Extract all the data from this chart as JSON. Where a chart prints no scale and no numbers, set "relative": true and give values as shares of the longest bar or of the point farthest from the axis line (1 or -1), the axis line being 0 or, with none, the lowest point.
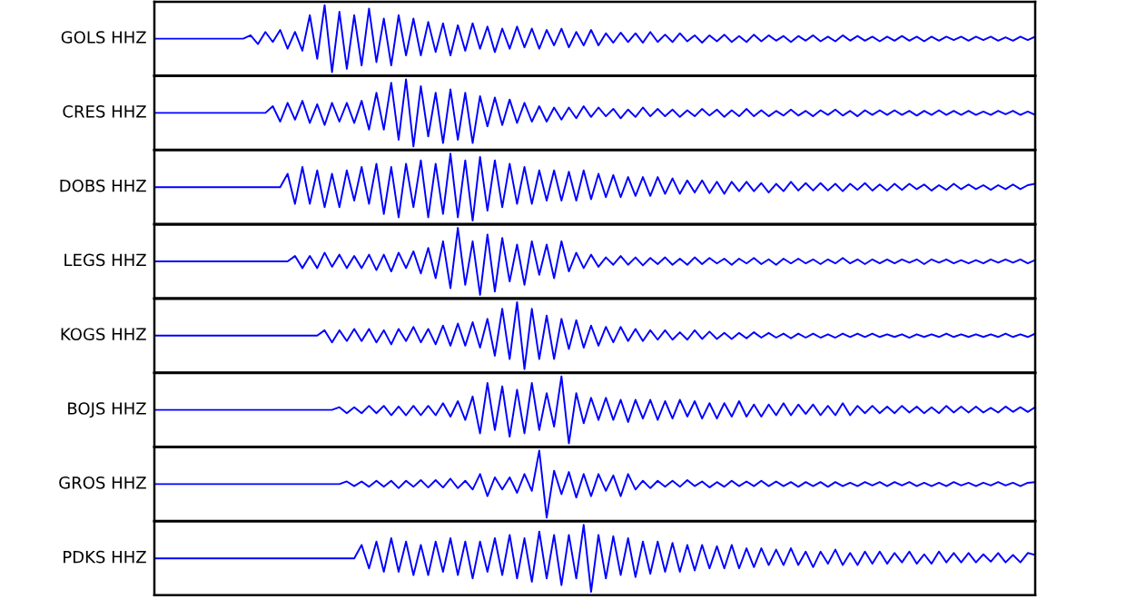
{
  "chart_data": [
    {
      "type": "line",
      "ylabel": "GOLS HHZ",
      "relative": true,
      "categories": [
        null,
        null,
        null,
        null,
        null,
        null,
        null,
        null,
        null,
        null,
        null,
        null,
        null,
        null,
        null,
        null,
        null,
        null,
        null,
        null,
        null,
        null,
        null,
        null,
        null,
        null,
        null,
        null,
        null,
        null,
        null,
        null,
        null,
        null,
        null,
        null,
        null,
        null,
        null,
        null,
        null,
        null,
        null,
        null,
        null,
        null,
        null,
        null,
        null,
        null,
        null,
        null,
        null,
        null,
        null,
        null,
        null,
        null,
        null,
        null,
        null,
        null,
        null,
        null,
        null,
        null,
        null,
        null,
        null,
        null,
        null,
        null,
        null,
        null,
        null,
        null,
        null,
        null,
        null,
        null,
        null,
        null,
        null,
        null,
        null,
        null,
        null,
        null,
        null,
        null,
        null,
        null,
        null,
        null,
        null,
        null,
        null,
        null,
        null,
        null,
        null,
        null,
        null,
        null,
        null,
        null,
        null,
        null,
        null,
        null,
        null,
        null,
        null,
        null,
        null,
        null,
        null,
        null,
        null,
        null
      ],
      "series": [
        {
          "color": "#0000ff",
          "values": [
            0.5,
            0.5,
            0.5,
            0.5,
            0.5,
            0.5,
            0.5,
            0.5,
            0.5,
            0.5,
            0.5,
            0.5,
            0.5,
            0.55,
            0.42,
            0.6,
            0.45,
            0.63,
            0.35,
            0.6,
            0.32,
            0.85,
            0.2,
            1,
            0,
            0.9,
            0.05,
            0.85,
            0.1,
            0.95,
            0.15,
            0.8,
            0.1,
            0.85,
            0.25,
            0.8,
            0.25,
            0.75,
            0.3,
            0.73,
            0.25,
            0.7,
            0.32,
            0.73,
            0.35,
            0.68,
            0.3,
            0.65,
            0.35,
            0.68,
            0.37,
            0.65,
            0.35,
            0.63,
            0.4,
            0.65,
            0.37,
            0.6,
            0.4,
            0.63,
            0.4,
            0.58,
            0.44,
            0.59,
            0.45,
            0.58,
            0.44,
            0.6,
            0.45,
            0.56,
            0.45,
            0.58,
            0.46,
            0.55,
            0.44,
            0.55,
            0.46,
            0.56,
            0.45,
            0.54,
            0.45,
            0.56,
            0.46,
            0.55,
            0.47,
            0.54,
            0.45,
            0.54,
            0.47,
            0.55,
            0.46,
            0.53,
            0.46,
            0.55,
            0.47,
            0.54,
            0.47,
            0.53,
            0.46,
            0.53,
            0.47,
            0.54,
            0.47,
            0.53,
            0.46,
            0.53,
            0.47,
            0.53,
            0.48,
            0.53,
            0.47,
            0.53,
            0.48,
            0.53,
            0.47,
            0.52,
            0.47,
            0.53,
            0.48,
            0.53
          ]
        }
      ]
    },
    {
      "type": "line",
      "ylabel": "CRES HHZ",
      "relative": true,
      "categories": [
        null,
        null,
        null,
        null,
        null,
        null,
        null,
        null,
        null,
        null,
        null,
        null,
        null,
        null,
        null,
        null,
        null,
        null,
        null,
        null,
        null,
        null,
        null,
        null,
        null,
        null,
        null,
        null,
        null,
        null,
        null,
        null,
        null,
        null,
        null,
        null,
        null,
        null,
        null,
        null,
        null,
        null,
        null,
        null,
        null,
        null,
        null,
        null,
        null,
        null,
        null,
        null,
        null,
        null,
        null,
        null,
        null,
        null,
        null,
        null,
        null,
        null,
        null,
        null,
        null,
        null,
        null,
        null,
        null,
        null,
        null,
        null,
        null,
        null,
        null,
        null,
        null,
        null,
        null,
        null,
        null,
        null,
        null,
        null,
        null,
        null,
        null,
        null,
        null,
        null,
        null,
        null,
        null,
        null,
        null,
        null,
        null,
        null,
        null,
        null,
        null,
        null,
        null,
        null,
        null,
        null,
        null,
        null,
        null,
        null,
        null,
        null,
        null,
        null,
        null,
        null,
        null,
        null,
        null,
        null
      ],
      "series": [
        {
          "color": "#0000ff",
          "values": [
            0.5,
            0.5,
            0.5,
            0.5,
            0.5,
            0.5,
            0.5,
            0.5,
            0.5,
            0.5,
            0.5,
            0.5,
            0.5,
            0.5,
            0.5,
            0.5,
            0.6,
            0.37,
            0.65,
            0.4,
            0.68,
            0.35,
            0.63,
            0.32,
            0.65,
            0.37,
            0.65,
            0.35,
            0.68,
            0.25,
            0.8,
            0.25,
            0.95,
            0.1,
            1,
            0,
            0.9,
            0.15,
            0.8,
            0.05,
            0.85,
            0.1,
            0.8,
            0.05,
            0.75,
            0.3,
            0.73,
            0.32,
            0.7,
            0.35,
            0.65,
            0.37,
            0.6,
            0.37,
            0.58,
            0.4,
            0.58,
            0.42,
            0.6,
            0.44,
            0.58,
            0.45,
            0.56,
            0.42,
            0.55,
            0.44,
            0.58,
            0.45,
            0.56,
            0.45,
            0.55,
            0.44,
            0.54,
            0.45,
            0.56,
            0.46,
            0.55,
            0.44,
            0.54,
            0.45,
            0.56,
            0.45,
            0.54,
            0.45,
            0.53,
            0.46,
            0.55,
            0.46,
            0.53,
            0.45,
            0.54,
            0.47,
            0.55,
            0.46,
            0.53,
            0.45,
            0.54,
            0.47,
            0.54,
            0.47,
            0.54,
            0.47,
            0.53,
            0.46,
            0.53,
            0.47,
            0.54,
            0.47,
            0.53,
            0.47,
            0.53,
            0.47,
            0.52,
            0.47,
            0.53,
            0.48,
            0.53,
            0.47,
            0.52,
            0.47
          ]
        }
      ]
    },
    {
      "type": "line",
      "ylabel": "DOBS HHZ",
      "relative": true,
      "categories": [
        null,
        null,
        null,
        null,
        null,
        null,
        null,
        null,
        null,
        null,
        null,
        null,
        null,
        null,
        null,
        null,
        null,
        null,
        null,
        null,
        null,
        null,
        null,
        null,
        null,
        null,
        null,
        null,
        null,
        null,
        null,
        null,
        null,
        null,
        null,
        null,
        null,
        null,
        null,
        null,
        null,
        null,
        null,
        null,
        null,
        null,
        null,
        null,
        null,
        null,
        null,
        null,
        null,
        null,
        null,
        null,
        null,
        null,
        null,
        null,
        null,
        null,
        null,
        null,
        null,
        null,
        null,
        null,
        null,
        null,
        null,
        null,
        null,
        null,
        null,
        null,
        null,
        null,
        null,
        null,
        null,
        null,
        null,
        null,
        null,
        null,
        null,
        null,
        null,
        null,
        null,
        null,
        null,
        null,
        null,
        null,
        null,
        null,
        null,
        null,
        null,
        null,
        null,
        null,
        null,
        null,
        null,
        null,
        null,
        null,
        null,
        null,
        null,
        null,
        null,
        null,
        null,
        null,
        null,
        null
      ],
      "series": [
        {
          "color": "#0000ff",
          "values": [
            0.5,
            0.5,
            0.5,
            0.5,
            0.5,
            0.5,
            0.5,
            0.5,
            0.5,
            0.5,
            0.5,
            0.5,
            0.5,
            0.5,
            0.5,
            0.5,
            0.5,
            0.5,
            0.7,
            0.25,
            0.8,
            0.25,
            0.75,
            0.2,
            0.7,
            0.2,
            0.75,
            0.3,
            0.8,
            0.25,
            0.85,
            0.1,
            0.8,
            0.05,
            0.85,
            0.2,
            0.9,
            0.05,
            0.85,
            0.1,
            1,
            0.05,
            0.9,
            0,
            0.95,
            0.15,
            0.9,
            0.2,
            0.85,
            0.25,
            0.8,
            0.25,
            0.75,
            0.3,
            0.75,
            0.3,
            0.73,
            0.3,
            0.75,
            0.32,
            0.7,
            0.35,
            0.68,
            0.35,
            0.65,
            0.37,
            0.65,
            0.37,
            0.65,
            0.4,
            0.63,
            0.4,
            0.6,
            0.42,
            0.6,
            0.41,
            0.58,
            0.4,
            0.58,
            0.44,
            0.58,
            0.44,
            0.56,
            0.42,
            0.55,
            0.44,
            0.58,
            0.45,
            0.56,
            0.45,
            0.56,
            0.45,
            0.55,
            0.44,
            0.55,
            0.46,
            0.56,
            0.45,
            0.54,
            0.45,
            0.55,
            0.46,
            0.55,
            0.47,
            0.54,
            0.45,
            0.53,
            0.46,
            0.55,
            0.47,
            0.54,
            0.47,
            0.53,
            0.46,
            0.53,
            0.47,
            0.54,
            0.47,
            0.53,
            0.55
          ]
        }
      ]
    },
    {
      "type": "line",
      "ylabel": "LEGS HHZ",
      "relative": true,
      "categories": [
        null,
        null,
        null,
        null,
        null,
        null,
        null,
        null,
        null,
        null,
        null,
        null,
        null,
        null,
        null,
        null,
        null,
        null,
        null,
        null,
        null,
        null,
        null,
        null,
        null,
        null,
        null,
        null,
        null,
        null,
        null,
        null,
        null,
        null,
        null,
        null,
        null,
        null,
        null,
        null,
        null,
        null,
        null,
        null,
        null,
        null,
        null,
        null,
        null,
        null,
        null,
        null,
        null,
        null,
        null,
        null,
        null,
        null,
        null,
        null,
        null,
        null,
        null,
        null,
        null,
        null,
        null,
        null,
        null,
        null,
        null,
        null,
        null,
        null,
        null,
        null,
        null,
        null,
        null,
        null,
        null,
        null,
        null,
        null,
        null,
        null,
        null,
        null,
        null,
        null,
        null,
        null,
        null,
        null,
        null,
        null,
        null,
        null,
        null,
        null,
        null,
        null,
        null,
        null,
        null,
        null,
        null,
        null,
        null,
        null,
        null,
        null,
        null,
        null,
        null,
        null,
        null,
        null,
        null,
        null
      ],
      "series": [
        {
          "color": "#0000ff",
          "values": [
            0.5,
            0.5,
            0.5,
            0.5,
            0.5,
            0.5,
            0.5,
            0.5,
            0.5,
            0.5,
            0.5,
            0.5,
            0.5,
            0.5,
            0.5,
            0.5,
            0.5,
            0.5,
            0.5,
            0.58,
            0.4,
            0.58,
            0.4,
            0.63,
            0.42,
            0.6,
            0.4,
            0.58,
            0.4,
            0.6,
            0.37,
            0.6,
            0.35,
            0.63,
            0.4,
            0.65,
            0.32,
            0.7,
            0.25,
            0.8,
            0.1,
            1,
            0.15,
            0.8,
            0,
            0.9,
            0.05,
            0.85,
            0.2,
            0.75,
            0.15,
            0.8,
            0.3,
            0.75,
            0.25,
            0.8,
            0.35,
            0.63,
            0.4,
            0.6,
            0.42,
            0.56,
            0.45,
            0.58,
            0.45,
            0.56,
            0.44,
            0.55,
            0.46,
            0.56,
            0.45,
            0.54,
            0.45,
            0.56,
            0.46,
            0.55,
            0.47,
            0.54,
            0.45,
            0.54,
            0.47,
            0.55,
            0.46,
            0.53,
            0.45,
            0.54,
            0.47,
            0.54,
            0.47,
            0.53,
            0.46,
            0.53,
            0.47,
            0.55,
            0.47,
            0.53,
            0.46,
            0.53,
            0.47,
            0.53,
            0.47,
            0.53,
            0.48,
            0.53,
            0.46,
            0.53,
            0.48,
            0.53,
            0.47,
            0.52,
            0.47,
            0.52,
            0.47,
            0.53,
            0.48,
            0.53,
            0.48,
            0.53,
            0.47,
            0.52
          ]
        }
      ]
    },
    {
      "type": "line",
      "ylabel": "KOGS HHZ",
      "relative": true,
      "categories": [
        null,
        null,
        null,
        null,
        null,
        null,
        null,
        null,
        null,
        null,
        null,
        null,
        null,
        null,
        null,
        null,
        null,
        null,
        null,
        null,
        null,
        null,
        null,
        null,
        null,
        null,
        null,
        null,
        null,
        null,
        null,
        null,
        null,
        null,
        null,
        null,
        null,
        null,
        null,
        null,
        null,
        null,
        null,
        null,
        null,
        null,
        null,
        null,
        null,
        null,
        null,
        null,
        null,
        null,
        null,
        null,
        null,
        null,
        null,
        null,
        null,
        null,
        null,
        null,
        null,
        null,
        null,
        null,
        null,
        null,
        null,
        null,
        null,
        null,
        null,
        null,
        null,
        null,
        null,
        null,
        null,
        null,
        null,
        null,
        null,
        null,
        null,
        null,
        null,
        null,
        null,
        null,
        null,
        null,
        null,
        null,
        null,
        null,
        null,
        null,
        null,
        null,
        null,
        null,
        null,
        null,
        null,
        null,
        null,
        null,
        null,
        null,
        null,
        null,
        null,
        null,
        null,
        null,
        null,
        null
      ],
      "series": [
        {
          "color": "#0000ff",
          "values": [
            0.5,
            0.5,
            0.5,
            0.5,
            0.5,
            0.5,
            0.5,
            0.5,
            0.5,
            0.5,
            0.5,
            0.5,
            0.5,
            0.5,
            0.5,
            0.5,
            0.5,
            0.5,
            0.5,
            0.5,
            0.5,
            0.5,
            0.5,
            0.58,
            0.4,
            0.58,
            0.42,
            0.6,
            0.42,
            0.6,
            0.4,
            0.58,
            0.37,
            0.6,
            0.42,
            0.63,
            0.4,
            0.6,
            0.37,
            0.65,
            0.35,
            0.68,
            0.35,
            0.7,
            0.32,
            0.75,
            0.2,
            0.9,
            0.15,
            1,
            0,
            0.9,
            0.15,
            0.8,
            0.15,
            0.75,
            0.3,
            0.73,
            0.32,
            0.65,
            0.35,
            0.63,
            0.4,
            0.63,
            0.42,
            0.6,
            0.42,
            0.58,
            0.44,
            0.58,
            0.44,
            0.55,
            0.44,
            0.58,
            0.45,
            0.56,
            0.45,
            0.54,
            0.45,
            0.54,
            0.46,
            0.55,
            0.47,
            0.54,
            0.47,
            0.53,
            0.46,
            0.53,
            0.47,
            0.53,
            0.47,
            0.52,
            0.47,
            0.53,
            0.48,
            0.53,
            0.48,
            0.53,
            0.48,
            0.52,
            0.48,
            0.52,
            0.47,
            0.52,
            0.48,
            0.52,
            0.48,
            0.53,
            0.48,
            0.52,
            0.48,
            0.52,
            0.48,
            0.52,
            0.48,
            0.53,
            0.48,
            0.52,
            0.48,
            0.53
          ]
        }
      ]
    },
    {
      "type": "line",
      "ylabel": "BOJS HHZ",
      "relative": true,
      "categories": [
        null,
        null,
        null,
        null,
        null,
        null,
        null,
        null,
        null,
        null,
        null,
        null,
        null,
        null,
        null,
        null,
        null,
        null,
        null,
        null,
        null,
        null,
        null,
        null,
        null,
        null,
        null,
        null,
        null,
        null,
        null,
        null,
        null,
        null,
        null,
        null,
        null,
        null,
        null,
        null,
        null,
        null,
        null,
        null,
        null,
        null,
        null,
        null,
        null,
        null,
        null,
        null,
        null,
        null,
        null,
        null,
        null,
        null,
        null,
        null,
        null,
        null,
        null,
        null,
        null,
        null,
        null,
        null,
        null,
        null,
        null,
        null,
        null,
        null,
        null,
        null,
        null,
        null,
        null,
        null,
        null,
        null,
        null,
        null,
        null,
        null,
        null,
        null,
        null,
        null,
        null,
        null,
        null,
        null,
        null,
        null,
        null,
        null,
        null,
        null,
        null,
        null,
        null,
        null,
        null,
        null,
        null,
        null,
        null,
        null,
        null,
        null,
        null,
        null,
        null,
        null,
        null,
        null,
        null,
        null
      ],
      "series": [
        {
          "color": "#0000ff",
          "values": [
            0.5,
            0.5,
            0.5,
            0.5,
            0.5,
            0.5,
            0.5,
            0.5,
            0.5,
            0.5,
            0.5,
            0.5,
            0.5,
            0.5,
            0.5,
            0.5,
            0.5,
            0.5,
            0.5,
            0.5,
            0.5,
            0.5,
            0.5,
            0.5,
            0.5,
            0.54,
            0.45,
            0.54,
            0.45,
            0.56,
            0.45,
            0.56,
            0.42,
            0.55,
            0.42,
            0.56,
            0.42,
            0.56,
            0.42,
            0.6,
            0.4,
            0.63,
            0.35,
            0.7,
            0.15,
            0.9,
            0.2,
            0.85,
            0.1,
            0.8,
            0.15,
            0.9,
            0.2,
            0.75,
            0.25,
            1,
            0,
            0.75,
            0.3,
            0.68,
            0.35,
            0.68,
            0.35,
            0.65,
            0.32,
            0.65,
            0.37,
            0.65,
            0.35,
            0.63,
            0.37,
            0.65,
            0.4,
            0.63,
            0.37,
            0.6,
            0.37,
            0.6,
            0.4,
            0.63,
            0.4,
            0.58,
            0.4,
            0.58,
            0.42,
            0.6,
            0.42,
            0.58,
            0.44,
            0.58,
            0.42,
            0.56,
            0.42,
            0.6,
            0.42,
            0.56,
            0.45,
            0.56,
            0.45,
            0.55,
            0.45,
            0.56,
            0.46,
            0.55,
            0.45,
            0.54,
            0.45,
            0.56,
            0.46,
            0.55,
            0.46,
            0.55,
            0.46,
            0.53,
            0.46,
            0.55,
            0.47,
            0.54,
            0.47,
            0.54
          ]
        }
      ]
    },
    {
      "type": "line",
      "ylabel": "GROS HHZ",
      "relative": true,
      "categories": [
        null,
        null,
        null,
        null,
        null,
        null,
        null,
        null,
        null,
        null,
        null,
        null,
        null,
        null,
        null,
        null,
        null,
        null,
        null,
        null,
        null,
        null,
        null,
        null,
        null,
        null,
        null,
        null,
        null,
        null,
        null,
        null,
        null,
        null,
        null,
        null,
        null,
        null,
        null,
        null,
        null,
        null,
        null,
        null,
        null,
        null,
        null,
        null,
        null,
        null,
        null,
        null,
        null,
        null,
        null,
        null,
        null,
        null,
        null,
        null,
        null,
        null,
        null,
        null,
        null,
        null,
        null,
        null,
        null,
        null,
        null,
        null,
        null,
        null,
        null,
        null,
        null,
        null,
        null,
        null,
        null,
        null,
        null,
        null,
        null,
        null,
        null,
        null,
        null,
        null,
        null,
        null,
        null,
        null,
        null,
        null,
        null,
        null,
        null,
        null,
        null,
        null,
        null,
        null,
        null,
        null,
        null,
        null,
        null,
        null,
        null,
        null,
        null,
        null,
        null,
        null,
        null,
        null,
        null,
        null
      ],
      "series": [
        {
          "color": "#0000ff",
          "values": [
            0.5,
            0.5,
            0.5,
            0.5,
            0.5,
            0.5,
            0.5,
            0.5,
            0.5,
            0.5,
            0.5,
            0.5,
            0.5,
            0.5,
            0.5,
            0.5,
            0.5,
            0.5,
            0.5,
            0.5,
            0.5,
            0.5,
            0.5,
            0.5,
            0.5,
            0.5,
            0.54,
            0.47,
            0.54,
            0.46,
            0.55,
            0.46,
            0.55,
            0.44,
            0.55,
            0.46,
            0.56,
            0.45,
            0.56,
            0.45,
            0.58,
            0.44,
            0.55,
            0.42,
            0.65,
            0.32,
            0.6,
            0.42,
            0.6,
            0.37,
            0.65,
            0.4,
            1,
            0,
            0.7,
            0.35,
            0.68,
            0.3,
            0.65,
            0.32,
            0.65,
            0.4,
            0.63,
            0.32,
            0.65,
            0.42,
            0.55,
            0.44,
            0.55,
            0.46,
            0.55,
            0.46,
            0.56,
            0.47,
            0.54,
            0.45,
            0.53,
            0.46,
            0.55,
            0.47,
            0.54,
            0.47,
            0.55,
            0.47,
            0.54,
            0.47,
            0.53,
            0.46,
            0.53,
            0.47,
            0.53,
            0.46,
            0.53,
            0.47,
            0.52,
            0.47,
            0.53,
            0.48,
            0.53,
            0.47,
            0.53,
            0.48,
            0.53,
            0.47,
            0.52,
            0.47,
            0.52,
            0.47,
            0.53,
            0.48,
            0.52,
            0.47,
            0.52,
            0.48,
            0.53,
            0.48,
            0.52,
            0.47,
            0.52,
            0.53
          ]
        }
      ]
    },
    {
      "type": "line",
      "ylabel": "PDKS HHZ",
      "relative": true,
      "categories": [
        null,
        null,
        null,
        null,
        null,
        null,
        null,
        null,
        null,
        null,
        null,
        null,
        null,
        null,
        null,
        null,
        null,
        null,
        null,
        null,
        null,
        null,
        null,
        null,
        null,
        null,
        null,
        null,
        null,
        null,
        null,
        null,
        null,
        null,
        null,
        null,
        null,
        null,
        null,
        null,
        null,
        null,
        null,
        null,
        null,
        null,
        null,
        null,
        null,
        null,
        null,
        null,
        null,
        null,
        null,
        null,
        null,
        null,
        null,
        null,
        null,
        null,
        null,
        null,
        null,
        null,
        null,
        null,
        null,
        null,
        null,
        null,
        null,
        null,
        null,
        null,
        null,
        null,
        null,
        null,
        null,
        null,
        null,
        null,
        null,
        null,
        null,
        null,
        null,
        null,
        null,
        null,
        null,
        null,
        null,
        null,
        null,
        null,
        null,
        null,
        null,
        null,
        null,
        null,
        null,
        null,
        null,
        null,
        null,
        null,
        null,
        null,
        null,
        null,
        null,
        null,
        null,
        null,
        null,
        null
      ],
      "series": [
        {
          "color": "#0000ff",
          "values": [
            0.5,
            0.5,
            0.5,
            0.5,
            0.5,
            0.5,
            0.5,
            0.5,
            0.5,
            0.5,
            0.5,
            0.5,
            0.5,
            0.5,
            0.5,
            0.5,
            0.5,
            0.5,
            0.5,
            0.5,
            0.5,
            0.5,
            0.5,
            0.5,
            0.5,
            0.5,
            0.5,
            0.5,
            0.7,
            0.35,
            0.75,
            0.3,
            0.8,
            0.3,
            0.75,
            0.25,
            0.7,
            0.25,
            0.75,
            0.3,
            0.8,
            0.25,
            0.75,
            0.2,
            0.75,
            0.3,
            0.8,
            0.25,
            0.85,
            0.2,
            0.8,
            0.15,
            0.9,
            0.2,
            0.85,
            0.1,
            0.85,
            0.2,
            1,
            0,
            0.85,
            0.2,
            0.83,
            0.25,
            0.8,
            0.22,
            0.75,
            0.27,
            0.75,
            0.3,
            0.73,
            0.3,
            0.7,
            0.32,
            0.7,
            0.35,
            0.68,
            0.35,
            0.7,
            0.35,
            0.65,
            0.37,
            0.65,
            0.4,
            0.63,
            0.4,
            0.65,
            0.4,
            0.6,
            0.37,
            0.6,
            0.42,
            0.63,
            0.4,
            0.58,
            0.4,
            0.6,
            0.42,
            0.6,
            0.42,
            0.58,
            0.44,
            0.6,
            0.42,
            0.56,
            0.42,
            0.6,
            0.44,
            0.58,
            0.44,
            0.58,
            0.44,
            0.56,
            0.45,
            0.58,
            0.44,
            0.55,
            0.44,
            0.58,
            0.55
          ]
        }
      ]
    }
  ]
}
